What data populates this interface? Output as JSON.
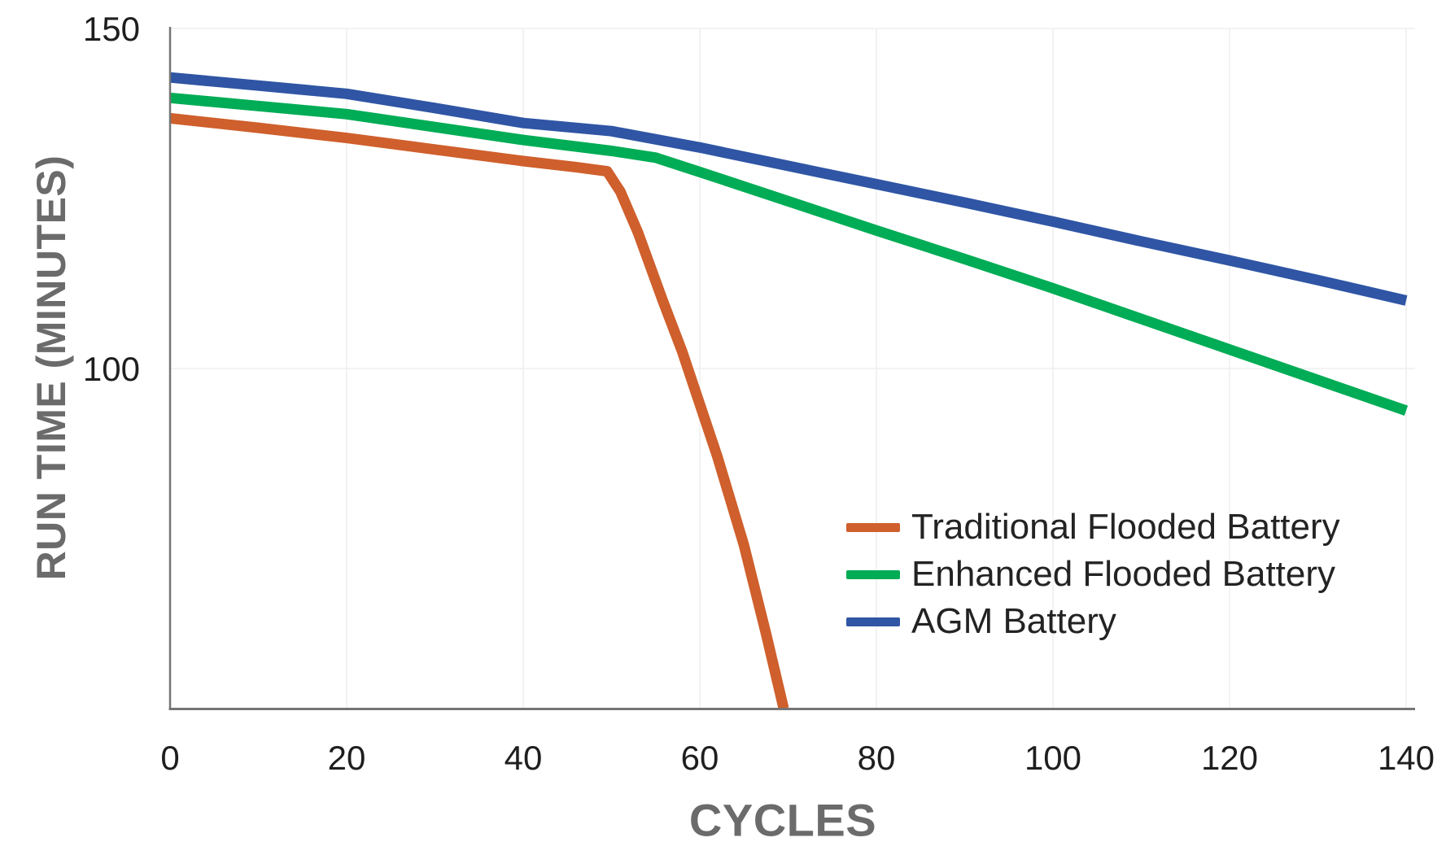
{
  "chart_data": {
    "type": "line",
    "title": "",
    "xlabel": "CYCLES",
    "ylabel": "RUN TIME (MINUTES)",
    "x_ticks": [
      0,
      20,
      40,
      60,
      80,
      100,
      120,
      140
    ],
    "y_ticks": [
      150,
      100
    ],
    "xlim": [
      0,
      140
    ],
    "ylim": [
      50,
      150
    ],
    "grid": "faint vertical lines at each x tick; faint horizontal lines at y=150 and y=100",
    "legend_position": "inside lower-right",
    "series": [
      {
        "name": "Traditional Flooded Battery",
        "color": "#CF5F2C",
        "points": [
          [
            0,
            136.8
          ],
          [
            10,
            135.4
          ],
          [
            20,
            133.9
          ],
          [
            30,
            132.2
          ],
          [
            40,
            130.5
          ],
          [
            46,
            129.6
          ],
          [
            49.5,
            129.0
          ],
          [
            51,
            126.0
          ],
          [
            53,
            120.0
          ],
          [
            55.8,
            110.0
          ],
          [
            58,
            102.5
          ],
          [
            62,
            87.0
          ],
          [
            65,
            74.0
          ],
          [
            67.5,
            61.0
          ],
          [
            69.5,
            50.0
          ]
        ]
      },
      {
        "name": "Enhanced Flooded Battery",
        "color": "#00AC55",
        "points": [
          [
            0,
            139.8
          ],
          [
            10,
            138.6
          ],
          [
            20,
            137.4
          ],
          [
            30,
            135.5
          ],
          [
            40,
            133.6
          ],
          [
            50,
            132.0
          ],
          [
            55,
            131.0
          ],
          [
            60,
            128.9
          ],
          [
            70,
            124.6
          ],
          [
            80,
            120.3
          ],
          [
            90,
            116.1
          ],
          [
            100,
            111.8
          ],
          [
            110,
            107.3
          ],
          [
            120,
            102.8
          ],
          [
            130,
            98.3
          ],
          [
            140,
            93.8
          ]
        ]
      },
      {
        "name": "AGM Battery",
        "color": "#2F55A4",
        "points": [
          [
            0,
            142.8
          ],
          [
            10,
            141.6
          ],
          [
            20,
            140.4
          ],
          [
            30,
            138.3
          ],
          [
            40,
            136.1
          ],
          [
            50,
            134.9
          ],
          [
            60,
            132.5
          ],
          [
            70,
            129.8
          ],
          [
            80,
            127.1
          ],
          [
            90,
            124.4
          ],
          [
            100,
            121.6
          ],
          [
            110,
            118.7
          ],
          [
            120,
            115.9
          ],
          [
            130,
            113.0
          ],
          [
            140,
            110.0
          ]
        ]
      }
    ]
  },
  "palette": {
    "axis_color": "#757575",
    "grid_color": "#efefef",
    "tick_text_color": "#1e1e1e",
    "axis_title_color": "#6b6b6b",
    "legend_text_color": "#232323",
    "background": "#ffffff"
  }
}
